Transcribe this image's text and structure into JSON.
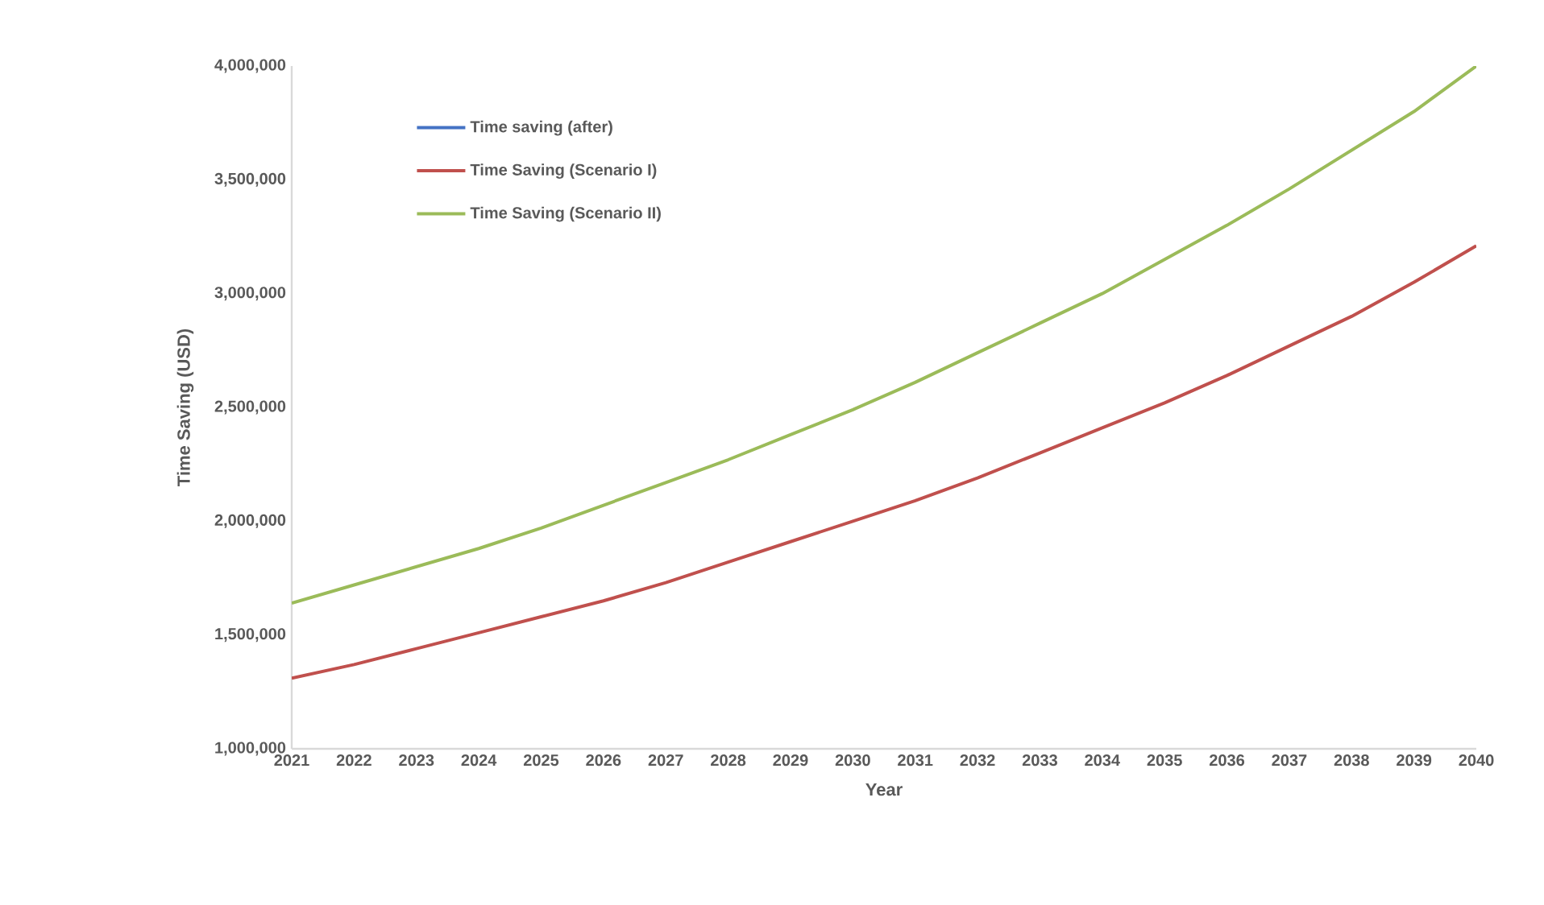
{
  "chart_data": {
    "type": "line",
    "xlabel": "Year",
    "ylabel": "Time Saving  (USD)",
    "x": [
      2021,
      2022,
      2023,
      2024,
      2025,
      2026,
      2027,
      2028,
      2029,
      2030,
      2031,
      2032,
      2033,
      2034,
      2035,
      2036,
      2037,
      2038,
      2039,
      2040
    ],
    "series": [
      {
        "name": "Time saving (after)",
        "color": "#4472c4",
        "values": [
          null,
          null,
          null,
          null,
          null,
          null,
          null,
          null,
          null,
          null,
          null,
          null,
          null,
          null,
          null,
          null,
          null,
          null,
          null,
          null
        ]
      },
      {
        "name": "Time Saving (Scenario I)",
        "color": "#c0504d",
        "values": [
          1310000,
          1370000,
          1440000,
          1510000,
          1580000,
          1650000,
          1730000,
          1820000,
          1910000,
          2000000,
          2090000,
          2190000,
          2300000,
          2410000,
          2520000,
          2640000,
          2770000,
          2900000,
          3050000,
          3210000
        ]
      },
      {
        "name": "Time Saving (Scenario II)",
        "color": "#9bbb59",
        "values": [
          1640000,
          1720000,
          1800000,
          1880000,
          1970000,
          2070000,
          2170000,
          2270000,
          2380000,
          2490000,
          2610000,
          2740000,
          2870000,
          3000000,
          3150000,
          3300000,
          3460000,
          3630000,
          3800000,
          4000000
        ]
      }
    ],
    "xlim": [
      2021,
      2040
    ],
    "xticks": [
      2021,
      2022,
      2023,
      2024,
      2025,
      2026,
      2027,
      2028,
      2029,
      2030,
      2031,
      2032,
      2033,
      2034,
      2035,
      2036,
      2037,
      2038,
      2039,
      2040
    ],
    "ylim": [
      1000000,
      4000000
    ],
    "yticks": [
      {
        "value": 1000000,
        "label": "1,000,000"
      },
      {
        "value": 1500000,
        "label": "1,500,000"
      },
      {
        "value": 2000000,
        "label": "2,000,000"
      },
      {
        "value": 2500000,
        "label": "2,500,000"
      },
      {
        "value": 3000000,
        "label": "3,000,000"
      },
      {
        "value": 3500000,
        "label": "3,500,000"
      },
      {
        "value": 4000000,
        "label": "4,000,000"
      }
    ],
    "legend": "top left",
    "grid": false,
    "marker": "none",
    "line_style": "solid"
  }
}
